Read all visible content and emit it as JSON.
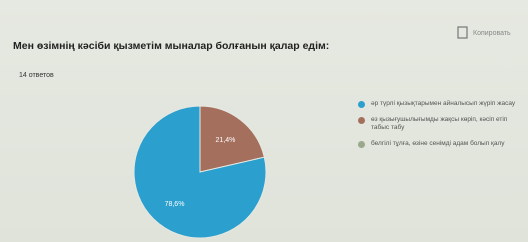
{
  "chart_data": {
    "type": "pie",
    "title": "Мен өзімнің кәсіби қызметім мыналар болғанын қалар едім:",
    "subtitle": "14 ответов",
    "toolbar_label": "Копировать",
    "series": [
      {
        "name": "әр түрлі қызықтарымен айналысып жүріп жасау",
        "color": "#2b9fce"
      },
      {
        "name": "өз қызығушылығымды жақсы көріп, кәсіп етіп табыс табу",
        "color": "#a56f5e"
      },
      {
        "name": "белгілі тұлға, өзіне сенімді адам болып қалу",
        "color": "#9aa98c"
      }
    ],
    "values": [
      78.6,
      21.4,
      0
    ],
    "value_labels": [
      "78,6%",
      "21,4%",
      null
    ]
  }
}
